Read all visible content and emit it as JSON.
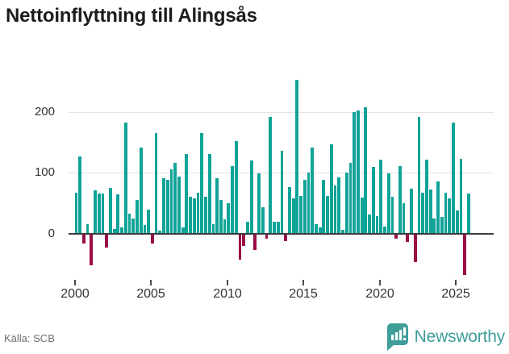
{
  "title": "Nettoinflyttning till Alingsås",
  "source_label": "Källa: SCB",
  "brand": {
    "name": "Newsworthy",
    "logo": "bar-chart-badge-icon"
  },
  "colors": {
    "positive_bar": "#10a398",
    "negative_bar": "#9b0f46",
    "gridline": "#e3e3e3",
    "zero_axis": "#3d3d3d",
    "tick_text": "#333333",
    "source_text": "#6e6e6e",
    "brand_teal": "#3f9e9a"
  },
  "chart_data": {
    "type": "bar",
    "title": "Nettoinflyttning till Alingsås",
    "frequency": "quarterly",
    "x_start": "2000-Q1",
    "x_end": "2025-Q4",
    "x_tick_labels": [
      "2000",
      "2005",
      "2010",
      "2015",
      "2020",
      "2025"
    ],
    "y_tick_labels": [
      "200",
      "100",
      "0"
    ],
    "y_ticks": [
      200,
      100,
      0
    ],
    "ylim": [
      -80,
      270
    ],
    "grid": "horizontal",
    "legend": "none",
    "values": [
      67,
      125,
      -15,
      16,
      -50,
      70,
      65,
      65,
      -21,
      75,
      8,
      64,
      11,
      180,
      33,
      25,
      55,
      140,
      15,
      39,
      -15,
      163,
      5,
      90,
      87,
      105,
      115,
      93,
      11,
      130,
      60,
      57,
      67,
      163,
      60,
      130,
      16,
      90,
      55,
      23,
      50,
      110,
      150,
      -40,
      -18,
      20,
      119,
      -25,
      98,
      43,
      -7,
      190,
      19,
      20,
      135,
      -10,
      76,
      57,
      250,
      62,
      88,
      100,
      140,
      16,
      11,
      87,
      62,
      145,
      78,
      91,
      6,
      100,
      115,
      197,
      200,
      59,
      205,
      31,
      109,
      29,
      120,
      12,
      98,
      60,
      -7,
      110,
      50,
      -12,
      73,
      -45,
      190,
      67,
      120,
      72,
      25,
      85,
      27,
      67,
      57,
      180,
      38,
      122,
      -65,
      66
    ]
  }
}
